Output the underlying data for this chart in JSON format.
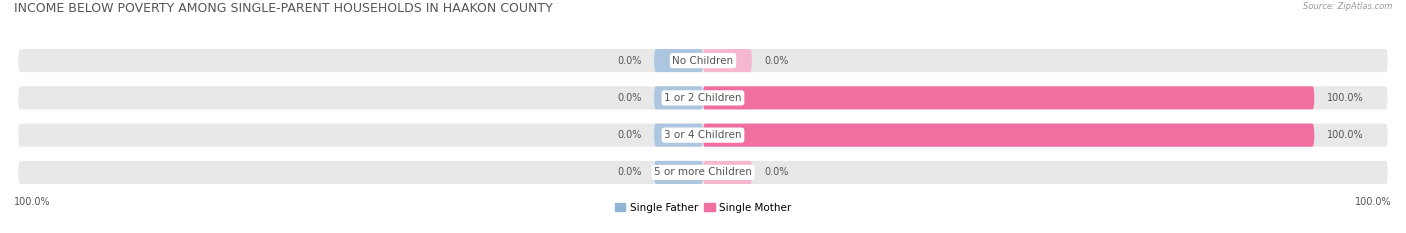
{
  "title": "INCOME BELOW POVERTY AMONG SINGLE-PARENT HOUSEHOLDS IN HAAKON COUNTY",
  "source": "Source: ZipAtlas.com",
  "categories": [
    "No Children",
    "1 or 2 Children",
    "3 or 4 Children",
    "5 or more Children"
  ],
  "single_father": [
    0.0,
    0.0,
    0.0,
    0.0
  ],
  "single_mother": [
    0.0,
    100.0,
    100.0,
    0.0
  ],
  "father_color": "#92b4d4",
  "mother_color": "#f06fa0",
  "father_stub_color": "#adc6df",
  "mother_stub_color": "#f5b8d0",
  "bar_bg_color": "#e8e8e8",
  "title_color": "#555555",
  "label_color": "#555555",
  "source_color": "#999999",
  "title_fontsize": 9.0,
  "label_fontsize": 7.5,
  "value_fontsize": 7.0,
  "legend_fontsize": 7.5,
  "fig_width": 14.06,
  "fig_height": 2.33,
  "dpi": 100,
  "stub_pct": 8,
  "scale": 100
}
